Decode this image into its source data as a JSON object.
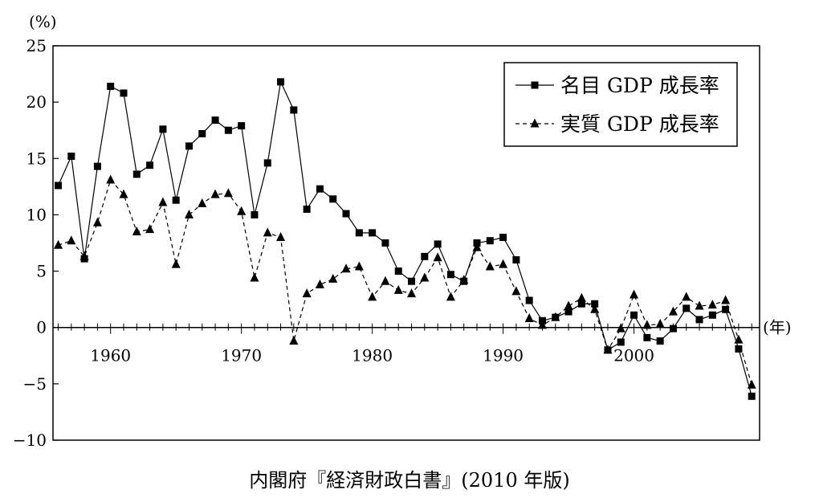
{
  "caption": "内閣府『経済財政白書』(2010 年版)",
  "chart_data": {
    "type": "line",
    "y_unit_label": "(%)",
    "x_unit_label": "(年)",
    "ylim": [
      -10,
      25
    ],
    "y_ticks": [
      25,
      20,
      15,
      10,
      5,
      0,
      -5,
      -10
    ],
    "y_tick_labels": [
      "25",
      "20",
      "15",
      "10",
      "5",
      "0",
      "−5",
      "−10"
    ],
    "xlim": [
      1955.6,
      2009.6
    ],
    "x_ticks": [
      1960,
      1970,
      1980,
      1990,
      2000
    ],
    "x_tick_labels": [
      "1960",
      "1970",
      "1980",
      "1990",
      "2000"
    ],
    "grid": false,
    "legend_position": "top-right",
    "series": [
      {
        "name": "名目 GDP 成長率",
        "marker": "square",
        "line_style": "solid",
        "x": [
          1956,
          1957,
          1958,
          1959,
          1960,
          1961,
          1962,
          1963,
          1964,
          1965,
          1966,
          1967,
          1968,
          1969,
          1970,
          1971,
          1972,
          1973,
          1974,
          1975,
          1976,
          1977,
          1978,
          1979,
          1980,
          1981,
          1982,
          1983,
          1984,
          1985,
          1986,
          1987,
          1988,
          1989,
          1990,
          1991,
          1992,
          1993,
          1994,
          1995,
          1996,
          1997,
          1998,
          1999,
          2000,
          2001,
          2002,
          2003,
          2004,
          2005,
          2006,
          2007,
          2008,
          2009
        ],
        "values": [
          12.6,
          15.2,
          6.1,
          14.3,
          21.4,
          20.8,
          13.6,
          14.4,
          17.6,
          11.3,
          16.1,
          17.2,
          18.4,
          17.5,
          17.9,
          10.0,
          14.6,
          21.8,
          19.3,
          10.5,
          12.3,
          11.4,
          10.1,
          8.4,
          8.4,
          7.5,
          5.0,
          4.1,
          6.3,
          7.4,
          4.7,
          4.1,
          7.5,
          7.7,
          8.0,
          6.0,
          2.4,
          0.6,
          0.9,
          1.4,
          2.1,
          2.1,
          -2.0,
          -1.3,
          1.1,
          -0.9,
          -1.2,
          -0.1,
          1.7,
          0.7,
          1.1,
          1.6,
          -1.9,
          -6.1
        ]
      },
      {
        "name": "実質 GDP 成長率",
        "marker": "triangle",
        "line_style": "dashed",
        "x": [
          1956,
          1957,
          1958,
          1959,
          1960,
          1961,
          1962,
          1963,
          1964,
          1965,
          1966,
          1967,
          1968,
          1969,
          1970,
          1971,
          1972,
          1973,
          1974,
          1975,
          1976,
          1977,
          1978,
          1979,
          1980,
          1981,
          1982,
          1983,
          1984,
          1985,
          1986,
          1987,
          1988,
          1989,
          1990,
          1991,
          1992,
          1993,
          1994,
          1995,
          1996,
          1997,
          1998,
          1999,
          2000,
          2001,
          2002,
          2003,
          2004,
          2005,
          2006,
          2007,
          2008,
          2009
        ],
        "values": [
          7.3,
          7.7,
          6.3,
          9.3,
          13.1,
          11.8,
          8.5,
          8.7,
          11.1,
          5.6,
          10.0,
          11.0,
          11.8,
          11.9,
          10.3,
          4.4,
          8.4,
          8.0,
          -1.2,
          3.0,
          3.8,
          4.3,
          5.2,
          5.4,
          2.7,
          4.1,
          3.3,
          3.0,
          4.4,
          6.2,
          2.7,
          4.2,
          7.1,
          5.4,
          5.6,
          3.2,
          0.8,
          0.2,
          0.9,
          1.9,
          2.6,
          1.6,
          -2.0,
          -0.1,
          2.9,
          0.2,
          0.3,
          1.4,
          2.7,
          1.9,
          2.0,
          2.4,
          -1.1,
          -5.1
        ]
      }
    ]
  }
}
